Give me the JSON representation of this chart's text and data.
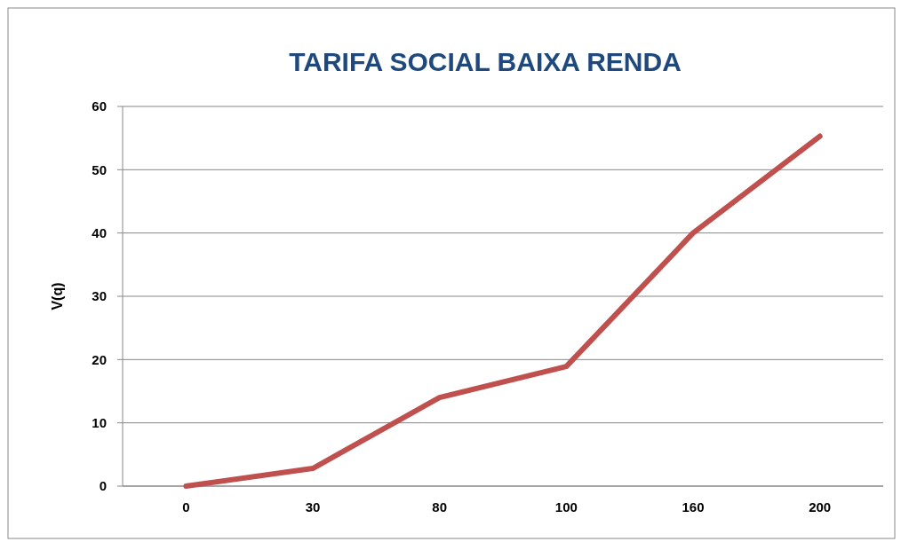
{
  "chart_data": {
    "type": "line",
    "title": "TARIFA SOCIAL BAIXA RENDA",
    "ylabel": "V(q)",
    "categories": [
      "0",
      "30",
      "80",
      "100",
      "160",
      "200"
    ],
    "series": [
      {
        "color": "#c0504d",
        "values": [
          0,
          2.8,
          14,
          18.9,
          40,
          55.3
        ]
      }
    ],
    "ylim": [
      0,
      60
    ],
    "yticks": [
      0,
      10,
      20,
      30,
      40,
      50,
      60
    ],
    "grid": "y",
    "marker": "none",
    "line_style": "solid"
  }
}
